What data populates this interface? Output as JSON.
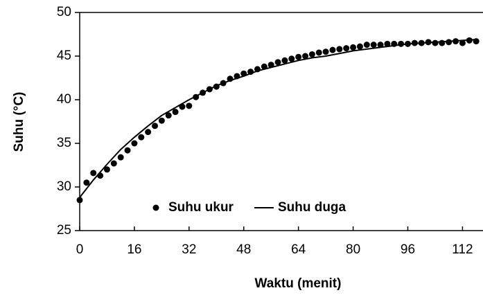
{
  "chart_data": {
    "type": "scatter-line",
    "x_label": "Waktu (menit)",
    "y_label": "Suhu (°C)",
    "xlim": [
      0,
      118
    ],
    "xticks": [
      0,
      16,
      32,
      48,
      64,
      80,
      96,
      112
    ],
    "ylim": [
      25,
      50
    ],
    "yticks": [
      25,
      30,
      35,
      40,
      45,
      50
    ],
    "legend": "bottom-center",
    "series": [
      {
        "name": "Suhu ukur",
        "type": "scatter",
        "color": "#000000",
        "x": [
          0,
          2,
          4,
          6,
          8,
          10,
          12,
          14,
          16,
          18,
          20,
          22,
          24,
          26,
          28,
          30,
          32,
          34,
          36,
          38,
          40,
          42,
          44,
          46,
          48,
          50,
          52,
          54,
          56,
          58,
          60,
          62,
          64,
          66,
          68,
          70,
          72,
          74,
          76,
          78,
          80,
          82,
          84,
          86,
          88,
          90,
          92,
          94,
          96,
          98,
          100,
          102,
          104,
          106,
          108,
          110,
          112,
          114,
          116
        ],
        "values": [
          28.5,
          30.5,
          31.6,
          31.3,
          32,
          32.7,
          33.4,
          34.2,
          35,
          35.7,
          36.3,
          37,
          37.6,
          38.2,
          38.6,
          39.2,
          39.3,
          40.3,
          40.8,
          41.2,
          41.5,
          41.9,
          42.4,
          42.7,
          43,
          43.2,
          43.5,
          43.8,
          44,
          44.3,
          44.5,
          44.7,
          44.9,
          45,
          45.2,
          45.4,
          45.5,
          45.7,
          45.8,
          45.9,
          46,
          46.1,
          46.3,
          46.3,
          46.3,
          46.4,
          46.4,
          46.4,
          46.4,
          46.5,
          46.5,
          46.6,
          46.5,
          46.5,
          46.6,
          46.7,
          46.5,
          46.8,
          46.7
        ]
      },
      {
        "name": "Suhu duga",
        "type": "line",
        "color": "#000000",
        "x": [
          0,
          4,
          8,
          12,
          16,
          20,
          24,
          28,
          32,
          36,
          40,
          44,
          48,
          52,
          56,
          60,
          64,
          68,
          72,
          76,
          80,
          84,
          88,
          92,
          96,
          100,
          104,
          108,
          112,
          116
        ],
        "values": [
          28.8,
          30.8,
          32.6,
          34.3,
          35.7,
          37.0,
          38.2,
          39.1,
          40.0,
          40.8,
          41.6,
          42.2,
          42.7,
          43.3,
          43.7,
          44.1,
          44.5,
          44.8,
          45.0,
          45.3,
          45.6,
          45.8,
          46.0,
          46.2,
          46.4,
          46.5,
          46.6,
          46.7,
          46.8,
          46.9
        ]
      }
    ]
  }
}
